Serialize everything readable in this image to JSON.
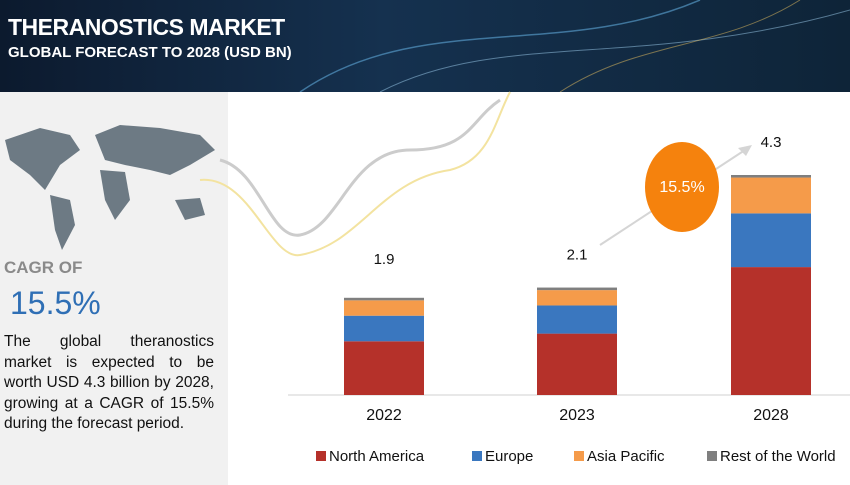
{
  "header": {
    "title": "THERANOSTICS MARKET",
    "subtitle": "GLOBAL FORECAST TO 2028 (USD BN)"
  },
  "summary": {
    "cagr_label": "CAGR OF",
    "cagr": "15.5%",
    "text": "The global theranostics market is expected to be worth USD 4.3 billion by 2028, growing at a CAGR of 15.5% during the forecast period."
  },
  "chart_data": {
    "type": "stacked-bar",
    "categories": [
      "2022",
      "2023",
      "2028"
    ],
    "series": [
      {
        "name": "North America",
        "color": "#b5312a",
        "values": [
          1.05,
          1.2,
          2.5
        ]
      },
      {
        "name": "Europe",
        "color": "#3a77bf",
        "values": [
          0.5,
          0.55,
          1.05
        ]
      },
      {
        "name": "Asia Pacific",
        "color": "#f59b4a",
        "values": [
          0.3,
          0.3,
          0.7
        ]
      },
      {
        "name": "Rest of the World",
        "color": "#7f7f7f",
        "values": [
          0.05,
          0.05,
          0.05
        ]
      }
    ],
    "totals": [
      1.9,
      2.1,
      4.3
    ],
    "cagr_badge": "15.5%",
    "badge_color": "#f5820d"
  }
}
